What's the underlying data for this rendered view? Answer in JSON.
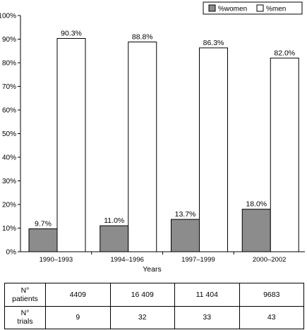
{
  "chart_data": {
    "type": "bar",
    "categories": [
      "1990–1993",
      "1994–1996",
      "1997–1999",
      "2000–2002"
    ],
    "series": [
      {
        "name": "%women",
        "values": [
          9.7,
          11.0,
          13.7,
          18.0
        ],
        "labels": [
          "9.7%",
          "11.0%",
          "13.7%",
          "18.0%"
        ],
        "color": "#8c8c8c"
      },
      {
        "name": "%men",
        "values": [
          90.3,
          88.8,
          86.3,
          82.0
        ],
        "labels": [
          "90.3%",
          "88.8%",
          "86.3%",
          "82.0%"
        ],
        "color": "#ffffff"
      }
    ],
    "xlabel": "Years",
    "ylabel": "",
    "ylim": [
      0,
      100
    ],
    "yticks": [
      "0%",
      "10%",
      "20%",
      "30%",
      "40%",
      "50%",
      "60%",
      "70%",
      "80%",
      "90%",
      "100%"
    ],
    "legend_position": "top-right",
    "grid": false
  },
  "table": {
    "rows": [
      {
        "head_line1": "N°",
        "head_line2": "patients",
        "cells": [
          "4409",
          "16 409",
          "11 404",
          "9683"
        ]
      },
      {
        "head_line1": "N°",
        "head_line2": "trials",
        "cells": [
          "9",
          "32",
          "33",
          "43"
        ]
      }
    ]
  }
}
